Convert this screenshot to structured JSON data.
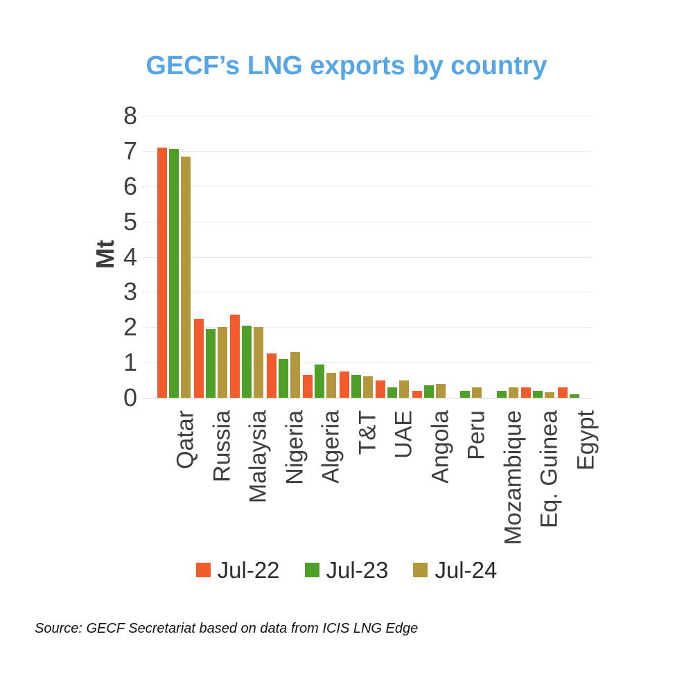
{
  "page": {
    "background": "#ffffff"
  },
  "chart_data": {
    "type": "bar",
    "title": "GECF’s LNG exports by country",
    "title_color": "#55a6e6",
    "ylabel": "Mt",
    "xlabel": "",
    "ylim": [
      0,
      8
    ],
    "yticks": [
      0,
      1,
      2,
      3,
      4,
      5,
      6,
      7,
      8
    ],
    "grid": "horizontal",
    "legend_position": "bottom center",
    "categories": [
      "Qatar",
      "Russia",
      "Malaysia",
      "Nigeria",
      "Algeria",
      "T&T",
      "UAE",
      "Angola",
      "Peru",
      "Mozambique",
      "Eq. Guinea",
      "Egypt"
    ],
    "series": [
      {
        "name": "Jul-22",
        "color": "#f25b2c",
        "values": [
          7.1,
          2.25,
          2.35,
          1.25,
          0.65,
          0.75,
          0.5,
          0.2,
          0,
          0,
          0.3,
          0.3
        ]
      },
      {
        "name": "Jul-23",
        "color": "#4e9f27",
        "values": [
          7.05,
          1.95,
          2.05,
          1.1,
          0.95,
          0.65,
          0.3,
          0.35,
          0.2,
          0.2,
          0.2,
          0.1
        ]
      },
      {
        "name": "Jul-24",
        "color": "#b3973d",
        "values": [
          6.85,
          2.0,
          2.0,
          1.3,
          0.7,
          0.6,
          0.5,
          0.4,
          0.3,
          0.3,
          0.15,
          0
        ]
      }
    ]
  },
  "source": {
    "text": "Source: GECF Secretariat based on data from ICIS LNG Edge"
  }
}
